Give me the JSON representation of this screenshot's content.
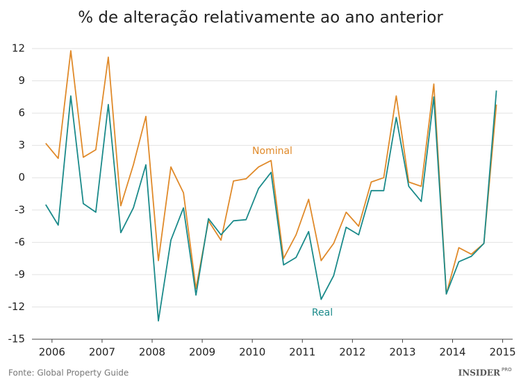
{
  "chart_data": {
    "type": "line",
    "title": "% de alteração relativamente ao ano anterior",
    "x": [
      2005.875,
      2006.125,
      2006.375,
      2006.625,
      2006.875,
      2007.125,
      2007.375,
      2007.625,
      2007.875,
      2008.125,
      2008.375,
      2008.625,
      2008.875,
      2009.125,
      2009.375,
      2009.625,
      2009.875,
      2010.125,
      2010.375,
      2010.625,
      2010.875,
      2011.125,
      2011.375,
      2011.625,
      2011.875,
      2012.125,
      2012.375,
      2012.625,
      2012.875,
      2013.125,
      2013.375,
      2013.625,
      2013.875,
      2014.125,
      2014.375,
      2014.625,
      2014.875
    ],
    "series": [
      {
        "name": "Nominal",
        "color": "#e08a2a",
        "values": [
          3.2,
          1.8,
          11.8,
          1.9,
          2.6,
          11.2,
          -2.6,
          1.2,
          5.7,
          -7.7,
          1.0,
          -1.4,
          -10.3,
          -4.0,
          -5.8,
          -0.3,
          -0.1,
          1.0,
          1.6,
          -7.5,
          -5.3,
          -2.0,
          -7.7,
          -6.1,
          -3.2,
          -4.5,
          -0.4,
          0.0,
          7.6,
          -0.4,
          -0.8,
          8.7,
          -10.8,
          -6.5,
          -7.1,
          -6.1,
          6.8
        ]
      },
      {
        "name": "Real",
        "color": "#1a8a8a",
        "values": [
          -2.5,
          -4.4,
          7.6,
          -2.4,
          -3.2,
          6.8,
          -5.1,
          -2.8,
          1.2,
          -13.3,
          -5.8,
          -2.8,
          -10.9,
          -3.8,
          -5.3,
          -4.0,
          -3.9,
          -1.0,
          0.5,
          -8.1,
          -7.4,
          -5.0,
          -11.3,
          -9.1,
          -4.6,
          -5.3,
          -1.2,
          -1.2,
          5.6,
          -0.8,
          -2.2,
          7.5,
          -10.8,
          -7.8,
          -7.3,
          -6.1,
          8.1
        ]
      }
    ],
    "xlim": [
      2005.6,
      2015.2
    ],
    "xticks": [
      2006,
      2007,
      2008,
      2009,
      2010,
      2011,
      2012,
      2013,
      2014,
      2015
    ],
    "ylim": [
      -15,
      12
    ],
    "yticks": [
      -15,
      -12,
      -9,
      -6,
      -3,
      0,
      3,
      6,
      9,
      12
    ],
    "grid": true,
    "source": "Fonte: Global Property Guide",
    "logo": {
      "name": "INSIDER",
      "tag": "PRO"
    }
  }
}
